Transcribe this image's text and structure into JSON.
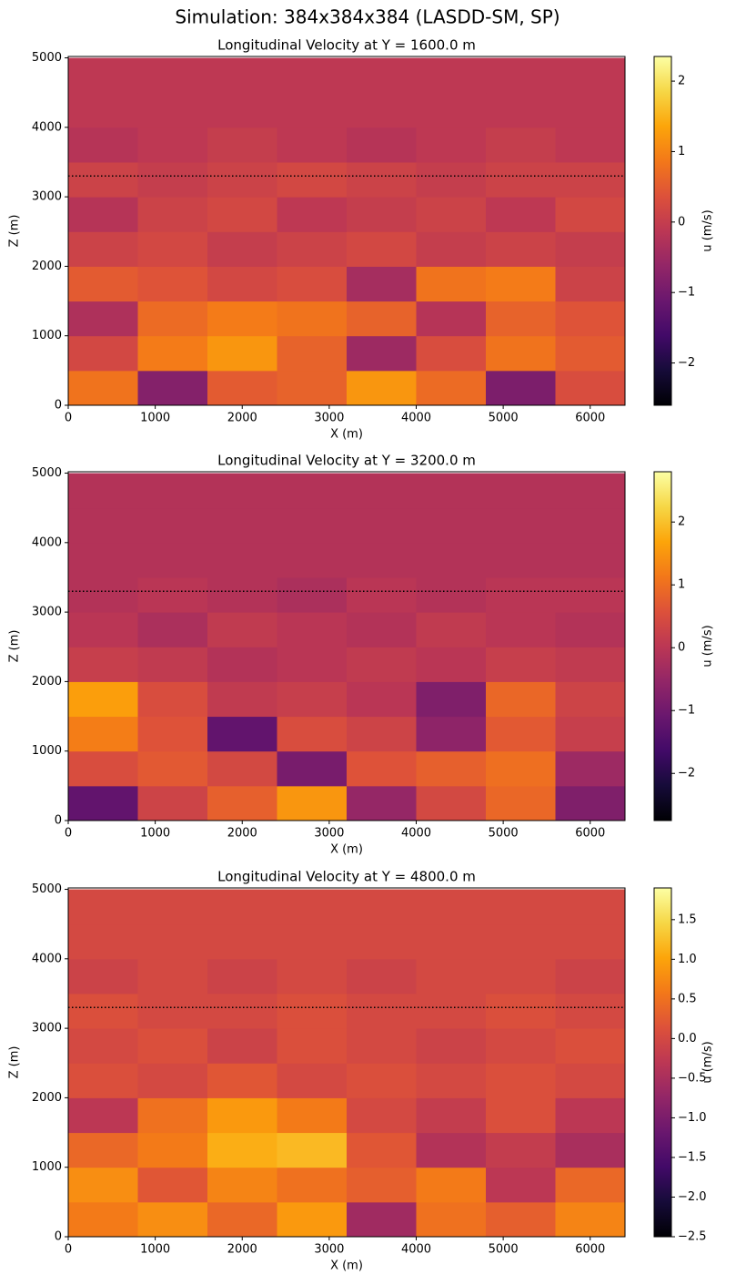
{
  "title": "Simulation: 384x384x384 (LASDD-SM, SP)",
  "chart_data": [
    {
      "type": "heatmap",
      "title": "Longitudinal Velocity at Y = 1600.0 m",
      "xlabel": "X (m)",
      "ylabel": "Z (m)",
      "colorbar_label": "u (m/s)",
      "colormap": "inferno",
      "clim": [
        -2.6,
        2.35
      ],
      "cticks": [
        {
          "value": -2,
          "label": "−2"
        },
        {
          "value": -1,
          "label": "−1"
        },
        0,
        1,
        2
      ],
      "xlim": [
        0,
        6400
      ],
      "ylim": [
        0,
        5020
      ],
      "xticks": [
        0,
        1000,
        2000,
        3000,
        4000,
        5000,
        6000
      ],
      "yticks": [
        0,
        1000,
        2000,
        3000,
        4000,
        5000
      ],
      "hline": {
        "value": 3300,
        "color": "#000000"
      },
      "x": [
        400,
        1200,
        2000,
        2800,
        3600,
        4400,
        5200,
        6000
      ],
      "y": [
        250,
        750,
        1250,
        1750,
        2250,
        2750,
        3250,
        3750,
        4250,
        4750
      ],
      "values": [
        [
          0.8,
          -0.8,
          0.5,
          0.6,
          1.2,
          0.7,
          -0.9,
          0.3
        ],
        [
          0.2,
          0.9,
          1.2,
          0.6,
          -0.5,
          0.3,
          0.8,
          0.5
        ],
        [
          -0.3,
          0.7,
          0.9,
          0.8,
          0.6,
          -0.2,
          0.6,
          0.4
        ],
        [
          0.5,
          0.4,
          0.2,
          0.3,
          -0.4,
          0.8,
          0.9,
          0.1
        ],
        [
          0.1,
          0.2,
          0,
          0.1,
          0.2,
          0,
          0.1,
          0
        ],
        [
          -0.2,
          0.1,
          0.2,
          -0.1,
          0,
          0.1,
          -0.1,
          0.2
        ],
        [
          0.1,
          0,
          0.1,
          0.2,
          0.1,
          0,
          0.1,
          0.1
        ],
        [
          -0.2,
          -0.1,
          0,
          -0.1,
          -0.2,
          -0.1,
          0,
          -0.1
        ],
        [
          -0.1,
          -0.1,
          -0.1,
          -0.1,
          -0.1,
          -0.1,
          -0.1,
          -0.1
        ],
        [
          -0.1,
          -0.1,
          -0.1,
          -0.1,
          -0.1,
          -0.1,
          -0.1,
          -0.1
        ]
      ]
    },
    {
      "type": "heatmap",
      "title": "Longitudinal Velocity at Y = 3200.0 m",
      "xlabel": "X (m)",
      "ylabel": "Z (m)",
      "colorbar_label": "u (m/s)",
      "colormap": "inferno",
      "clim": [
        -2.75,
        2.8
      ],
      "cticks": [
        {
          "value": -2,
          "label": "−2"
        },
        {
          "value": -1,
          "label": "−1"
        },
        0,
        1,
        2
      ],
      "xlim": [
        0,
        6400
      ],
      "ylim": [
        0,
        5020
      ],
      "xticks": [
        0,
        1000,
        2000,
        3000,
        4000,
        5000,
        6000
      ],
      "yticks": [
        0,
        1000,
        2000,
        3000,
        4000,
        5000
      ],
      "hline": {
        "value": 3300,
        "color": "#000000"
      },
      "x": [
        400,
        1200,
        2000,
        2800,
        3600,
        4400,
        5200,
        6000
      ],
      "y": [
        250,
        750,
        1250,
        1750,
        2250,
        2750,
        3250,
        3750,
        4250,
        4750
      ],
      "values": [
        [
          -1.2,
          0.3,
          0.8,
          1.5,
          -0.5,
          0.4,
          0.9,
          -0.8
        ],
        [
          0.5,
          0.7,
          0.4,
          -0.9,
          0.6,
          0.8,
          1.0,
          -0.4
        ],
        [
          1.2,
          0.6,
          -1.2,
          0.5,
          0.3,
          -0.6,
          0.7,
          0.2
        ],
        [
          1.6,
          0.5,
          0.1,
          0.2,
          0,
          -0.8,
          0.9,
          0.3
        ],
        [
          0.2,
          0.1,
          -0.1,
          0,
          0.1,
          0,
          0.2,
          0.1
        ],
        [
          0,
          -0.2,
          0.1,
          0,
          -0.1,
          0.1,
          0,
          -0.1
        ],
        [
          -0.1,
          0,
          -0.1,
          -0.2,
          0,
          -0.1,
          0,
          0
        ],
        [
          -0.1,
          -0.1,
          -0.1,
          -0.1,
          -0.1,
          -0.1,
          -0.1,
          -0.1
        ],
        [
          -0.1,
          -0.1,
          -0.1,
          -0.1,
          -0.1,
          -0.1,
          -0.1,
          -0.1
        ],
        [
          -0.1,
          -0.1,
          -0.1,
          -0.1,
          -0.1,
          -0.1,
          -0.1,
          -0.1
        ]
      ]
    },
    {
      "type": "heatmap",
      "title": "Longitudinal Velocity at Y = 4800.0 m",
      "xlabel": "X (m)",
      "ylabel": "Z (m)",
      "colorbar_label": "u (m/s)",
      "colormap": "inferno",
      "clim": [
        -2.5,
        1.9
      ],
      "cticks": [
        {
          "value": -2.5,
          "label": "−2.5"
        },
        {
          "value": -2,
          "label": "−2.0"
        },
        {
          "value": -1.5,
          "label": "−1.5"
        },
        {
          "value": -1,
          "label": "−1.0"
        },
        {
          "value": -0.5,
          "label": "−0.5"
        },
        {
          "value": 0,
          "label": "0.0"
        },
        0.5,
        {
          "value": 1,
          "label": "1.0"
        },
        1.5
      ],
      "xlim": [
        0,
        6400
      ],
      "ylim": [
        0,
        5020
      ],
      "xticks": [
        0,
        1000,
        2000,
        3000,
        4000,
        5000,
        6000
      ],
      "yticks": [
        0,
        1000,
        2000,
        3000,
        4000,
        5000
      ],
      "hline": {
        "value": 3300,
        "color": "#000000"
      },
      "x": [
        400,
        1200,
        2000,
        2800,
        3600,
        4400,
        5200,
        6000
      ],
      "y": [
        250,
        750,
        1250,
        1750,
        2250,
        2750,
        3250,
        3750,
        4250,
        4750
      ],
      "values": [
        [
          0.6,
          0.8,
          0.4,
          0.9,
          -0.6,
          0.5,
          0.3,
          0.7
        ],
        [
          0.8,
          0.2,
          0.7,
          0.5,
          0.3,
          0.6,
          -0.3,
          0.4
        ],
        [
          0.4,
          0.6,
          1.1,
          1.2,
          0.2,
          -0.4,
          -0.2,
          -0.5
        ],
        [
          -0.3,
          0.5,
          0.9,
          0.6,
          0,
          -0.2,
          0.1,
          -0.3
        ],
        [
          0.1,
          0,
          0.2,
          0,
          0.1,
          0,
          0.1,
          0
        ],
        [
          0,
          0.1,
          -0.1,
          0.1,
          0,
          -0.1,
          0,
          0.1
        ],
        [
          0.1,
          0,
          0,
          0.1,
          0,
          0,
          0.1,
          0
        ],
        [
          -0.1,
          0,
          -0.1,
          0,
          -0.1,
          0,
          0,
          -0.1
        ],
        [
          0,
          0,
          0,
          0,
          0,
          0,
          0,
          0
        ],
        [
          0,
          0,
          0,
          0,
          0,
          0,
          0,
          0
        ]
      ]
    }
  ]
}
